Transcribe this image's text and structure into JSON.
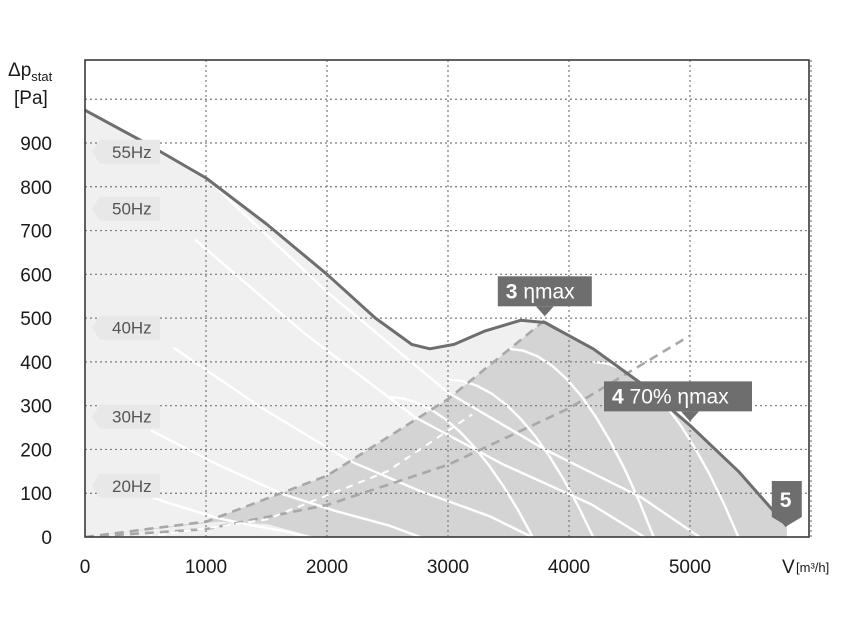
{
  "chart_data": {
    "type": "line",
    "title": "",
    "xlabel": "V [m³/h]",
    "ylabel": "Δp stat [Pa]",
    "ylabel_parts": {
      "symbol": "Δp",
      "subscript": "stat",
      "unit": "[Pa]"
    },
    "xlabel_parts": {
      "symbol": "V",
      "unit": "[m³/h]"
    },
    "xlim": [
      0,
      6000
    ],
    "ylim": [
      0,
      1000
    ],
    "x_ticks": [
      0,
      1000,
      2000,
      3000,
      4000,
      5000
    ],
    "y_ticks": [
      0,
      100,
      200,
      300,
      400,
      500,
      600,
      700,
      800,
      900
    ],
    "grid": true,
    "frequency_labels": [
      {
        "label": "55Hz",
        "y": 880
      },
      {
        "label": "50Hz",
        "y": 750
      },
      {
        "label": "40Hz",
        "y": 478
      },
      {
        "label": "30Hz",
        "y": 275
      },
      {
        "label": "20Hz",
        "y": 117
      }
    ],
    "series": [
      {
        "style": "envelope",
        "points": [
          [
            0,
            975
          ],
          [
            500,
            900
          ],
          [
            1000,
            820
          ],
          [
            1500,
            715
          ],
          [
            2000,
            600
          ],
          [
            2400,
            500
          ],
          [
            2700,
            440
          ],
          [
            2850,
            430
          ],
          [
            3050,
            440
          ],
          [
            3300,
            470
          ],
          [
            3600,
            495
          ],
          [
            3800,
            490
          ],
          [
            4200,
            430
          ],
          [
            4600,
            350
          ],
          [
            5000,
            255
          ],
          [
            5400,
            150
          ],
          [
            5800,
            25
          ]
        ]
      },
      {
        "style": "system-curve-dashed",
        "points": [
          [
            0,
            0
          ],
          [
            1000,
            35
          ],
          [
            2000,
            140
          ],
          [
            3000,
            315
          ],
          [
            3800,
            495
          ]
        ]
      },
      {
        "style": "system-curve-dashed",
        "points": [
          [
            0,
            0
          ],
          [
            1000,
            18
          ],
          [
            2000,
            73
          ],
          [
            3000,
            165
          ],
          [
            4000,
            294
          ],
          [
            5000,
            460
          ]
        ]
      }
    ],
    "operating_points": [
      {
        "number": "3",
        "label": "ηmax",
        "x": 3800,
        "y": 495
      },
      {
        "number": "4",
        "label": "70% ηmax",
        "x": 5000,
        "y": 255
      },
      {
        "number": "5",
        "label": "",
        "x": 5800,
        "y": 25
      }
    ],
    "colors": {
      "envelope": "#6e6e6e",
      "region_light": "#f0f0f0",
      "region_dark": "#d4d4d4",
      "annotation_bg": "#6e6e6e",
      "hz_bg": "#e8e8e8",
      "grid": "#7a7a7a"
    }
  }
}
